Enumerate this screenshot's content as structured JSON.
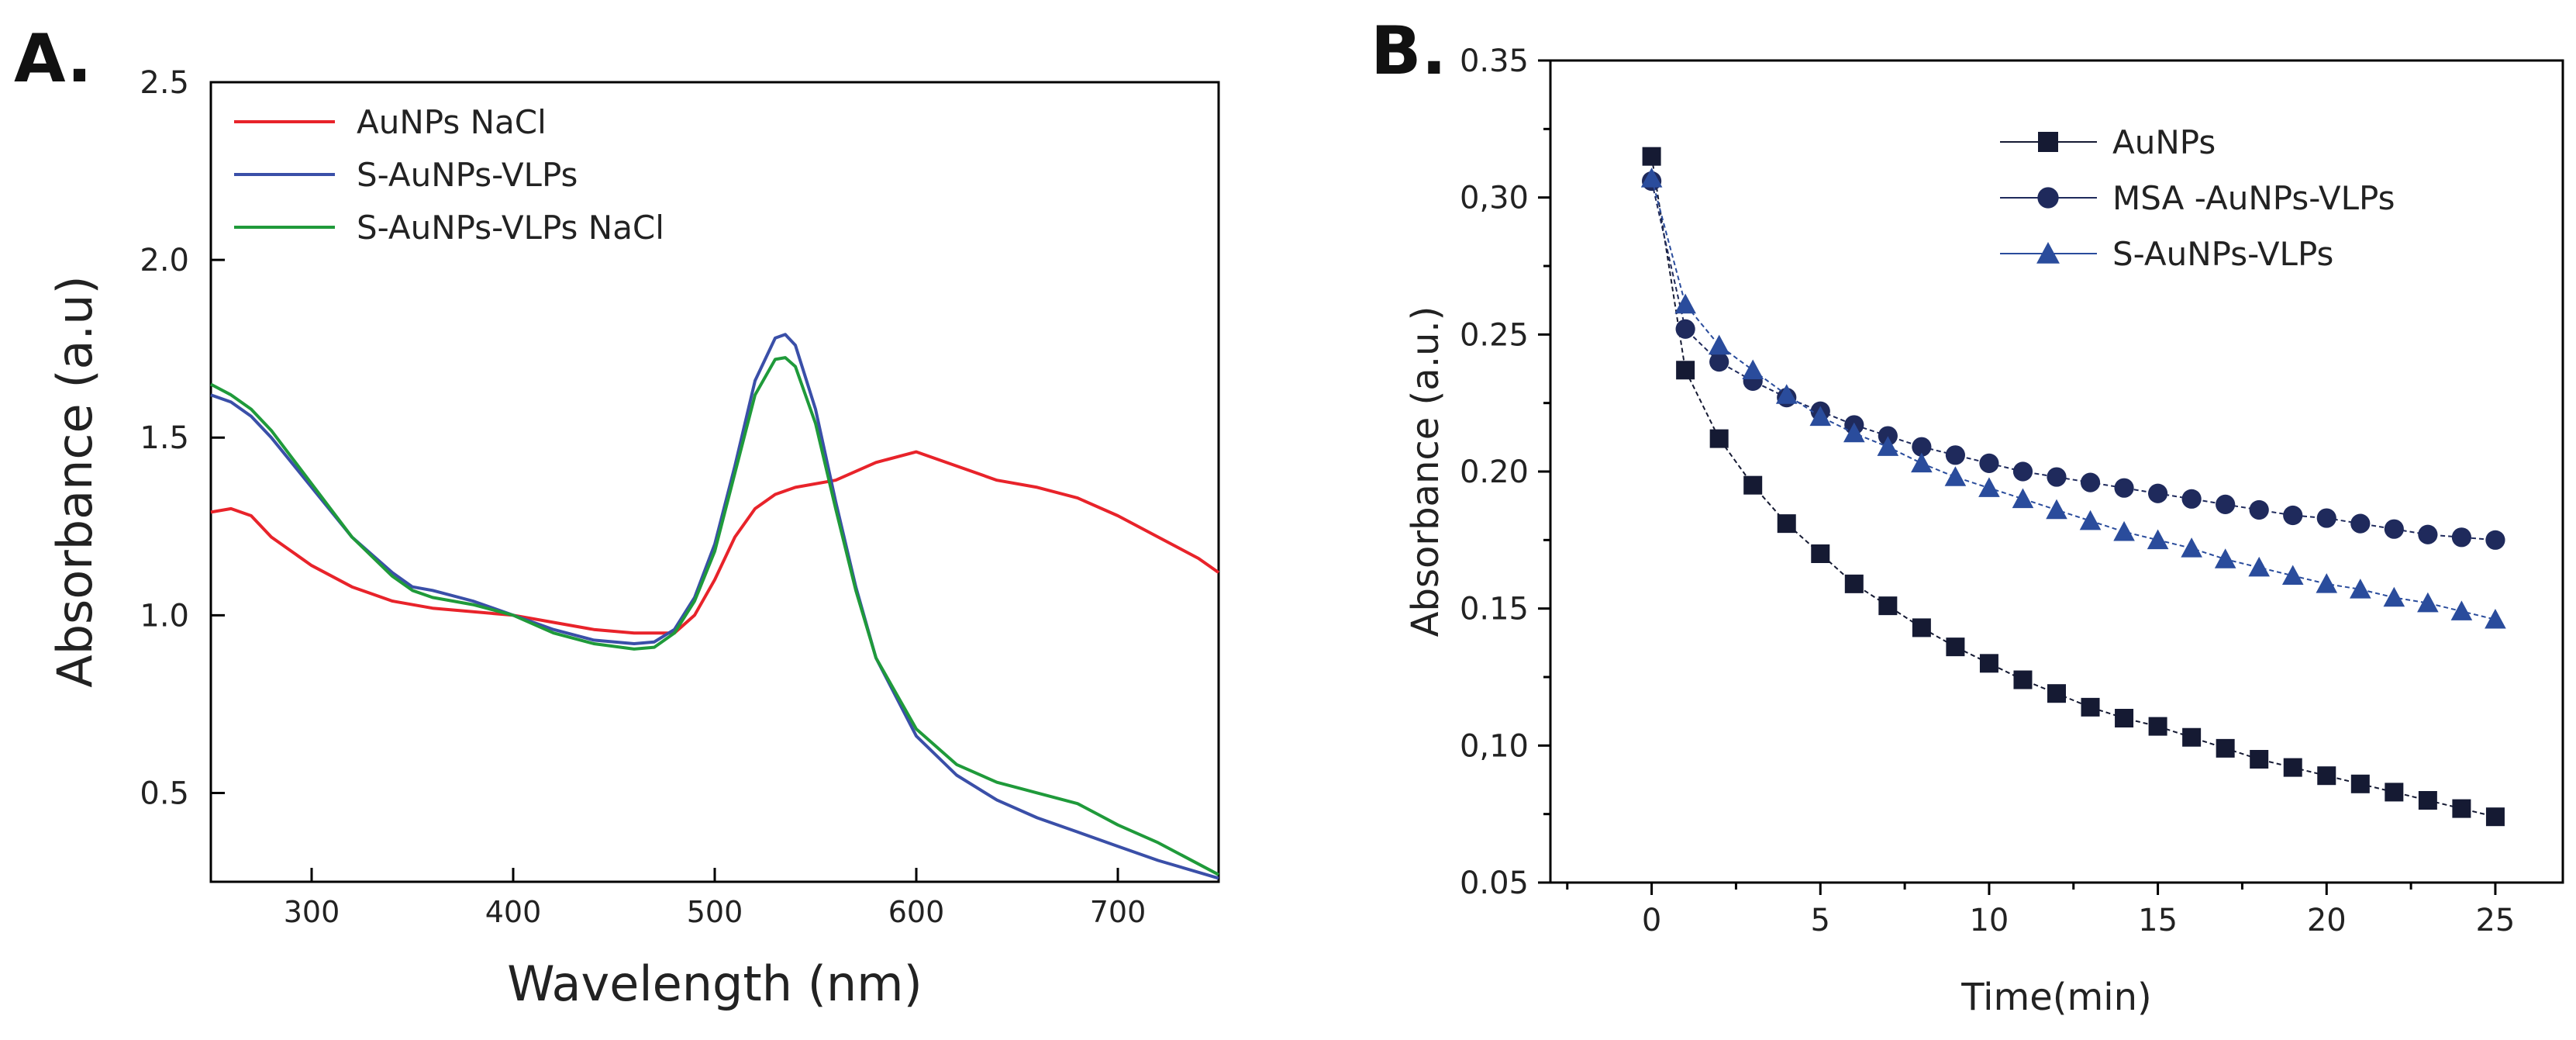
{
  "panels": {
    "a": {
      "label": "A."
    },
    "b": {
      "label": "B."
    }
  },
  "chart_data": [
    {
      "type": "line",
      "xlabel": "Wavelength (nm)",
      "ylabel": "Absorbance (a.u)",
      "xlim": [
        250,
        750
      ],
      "ylim": [
        0.25,
        2.5
      ],
      "xticks": [
        300,
        400,
        500,
        600,
        700
      ],
      "yticks": [
        0.5,
        1.0,
        1.5,
        2.0,
        2.5
      ],
      "ytick_labels": [
        "0.5",
        "1.0",
        "1.5",
        "2.0",
        "2.5"
      ],
      "legend": "top-left",
      "series": [
        {
          "name": "AuNPs NaCl",
          "color": "#e8232a",
          "x": [
            250,
            260,
            270,
            280,
            300,
            320,
            340,
            360,
            380,
            400,
            420,
            440,
            460,
            480,
            490,
            500,
            510,
            520,
            530,
            540,
            560,
            580,
            600,
            620,
            640,
            660,
            680,
            700,
            720,
            740,
            750
          ],
          "y": [
            1.29,
            1.3,
            1.28,
            1.22,
            1.14,
            1.08,
            1.04,
            1.02,
            1.01,
            1.0,
            0.98,
            0.96,
            0.95,
            0.95,
            1.0,
            1.1,
            1.22,
            1.3,
            1.34,
            1.36,
            1.38,
            1.43,
            1.46,
            1.42,
            1.38,
            1.36,
            1.33,
            1.28,
            1.22,
            1.16,
            1.12
          ]
        },
        {
          "name": "S-AuNPs-VLPs",
          "color": "#3a4fa8",
          "x": [
            250,
            260,
            270,
            280,
            300,
            320,
            340,
            350,
            360,
            380,
            400,
            420,
            440,
            460,
            470,
            480,
            490,
            500,
            510,
            520,
            530,
            535,
            540,
            550,
            560,
            570,
            580,
            600,
            620,
            640,
            660,
            680,
            700,
            720,
            750
          ],
          "y": [
            1.62,
            1.6,
            1.56,
            1.5,
            1.36,
            1.22,
            1.12,
            1.08,
            1.07,
            1.04,
            1.0,
            0.96,
            0.93,
            0.92,
            0.925,
            0.96,
            1.05,
            1.2,
            1.42,
            1.66,
            1.78,
            1.79,
            1.76,
            1.58,
            1.32,
            1.08,
            0.88,
            0.66,
            0.55,
            0.48,
            0.43,
            0.39,
            0.35,
            0.31,
            0.26
          ]
        },
        {
          "name": "S-AuNPs-VLPs NaCl",
          "color": "#1f9a3a",
          "x": [
            250,
            260,
            270,
            280,
            300,
            320,
            340,
            350,
            360,
            380,
            400,
            420,
            440,
            460,
            470,
            480,
            490,
            500,
            510,
            520,
            530,
            535,
            540,
            550,
            560,
            570,
            580,
            600,
            620,
            640,
            660,
            680,
            690,
            700,
            720,
            750
          ],
          "y": [
            1.65,
            1.62,
            1.58,
            1.52,
            1.37,
            1.22,
            1.11,
            1.07,
            1.05,
            1.03,
            1.0,
            0.95,
            0.92,
            0.905,
            0.91,
            0.95,
            1.04,
            1.18,
            1.4,
            1.62,
            1.72,
            1.725,
            1.7,
            1.54,
            1.3,
            1.07,
            0.88,
            0.68,
            0.58,
            0.53,
            0.5,
            0.47,
            0.44,
            0.41,
            0.36,
            0.27
          ]
        }
      ]
    },
    {
      "type": "line",
      "xlabel": "Time(min)",
      "ylabel": "Absorbance (a.u.)",
      "xlim": [
        -3,
        27
      ],
      "ylim": [
        0.05,
        0.35
      ],
      "xticks": [
        0,
        5,
        10,
        15,
        20,
        25
      ],
      "yticks": [
        0.05,
        0.1,
        0.15,
        0.2,
        0.25,
        0.3,
        0.35
      ],
      "ytick_labels": [
        "0.05",
        "0,10",
        "0.15",
        "0.20",
        "0.25",
        "0,30",
        "0.35"
      ],
      "legend": "top-right",
      "series": [
        {
          "name": "AuNPs",
          "color": "#151a33",
          "marker": "square",
          "x": [
            0,
            1,
            2,
            3,
            4,
            5,
            6,
            7,
            8,
            9,
            10,
            11,
            12,
            13,
            14,
            15,
            16,
            17,
            18,
            19,
            20,
            21,
            22,
            23,
            24,
            25
          ],
          "y": [
            0.315,
            0.237,
            0.212,
            0.195,
            0.181,
            0.17,
            0.159,
            0.151,
            0.143,
            0.136,
            0.13,
            0.124,
            0.119,
            0.114,
            0.11,
            0.107,
            0.103,
            0.099,
            0.095,
            0.092,
            0.089,
            0.086,
            0.083,
            0.08,
            0.077,
            0.074
          ]
        },
        {
          "name": "MSA -AuNPs-VLPs",
          "color": "#1f2a5c",
          "marker": "circle",
          "x": [
            0,
            1,
            2,
            3,
            4,
            5,
            6,
            7,
            8,
            9,
            10,
            11,
            12,
            13,
            14,
            15,
            16,
            17,
            18,
            19,
            20,
            21,
            22,
            23,
            24,
            25
          ],
          "y": [
            0.306,
            0.252,
            0.24,
            0.233,
            0.227,
            0.222,
            0.217,
            0.213,
            0.209,
            0.206,
            0.203,
            0.2,
            0.198,
            0.196,
            0.194,
            0.192,
            0.19,
            0.188,
            0.186,
            0.184,
            0.183,
            0.181,
            0.179,
            0.177,
            0.176,
            0.175
          ]
        },
        {
          "name": "S-AuNPs-VLPs",
          "color": "#2a4c9c",
          "marker": "triangle",
          "x": [
            0,
            1,
            2,
            3,
            4,
            5,
            6,
            7,
            8,
            9,
            10,
            11,
            12,
            13,
            14,
            15,
            16,
            17,
            18,
            19,
            20,
            21,
            22,
            23,
            24,
            25
          ],
          "y": [
            0.307,
            0.261,
            0.246,
            0.237,
            0.228,
            0.22,
            0.214,
            0.209,
            0.203,
            0.198,
            0.194,
            0.19,
            0.186,
            0.182,
            0.178,
            0.175,
            0.172,
            0.168,
            0.165,
            0.162,
            0.159,
            0.157,
            0.154,
            0.152,
            0.149,
            0.146
          ]
        }
      ]
    }
  ]
}
